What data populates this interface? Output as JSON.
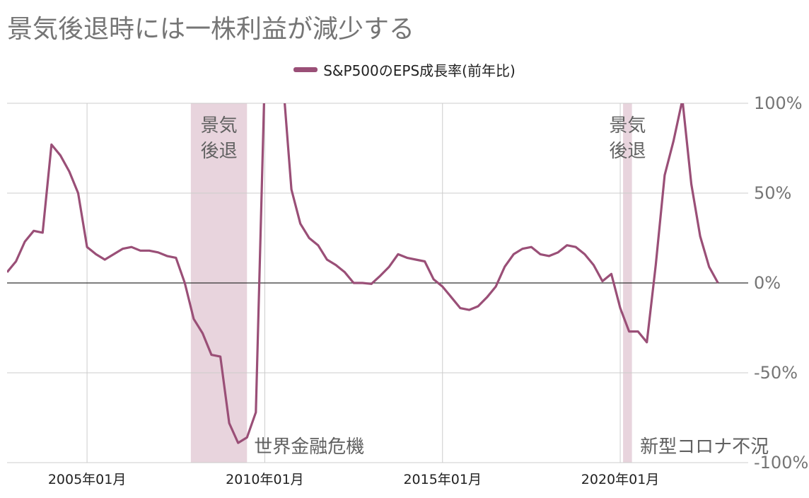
{
  "chart_data": {
    "type": "line",
    "title": "景気後退時には一株利益が減少する",
    "series": [
      {
        "name": "S&P500のEPS成長率(前年比)",
        "color": "#9a4f77",
        "x": [
          2002.75,
          2003.0,
          2003.25,
          2003.5,
          2003.75,
          2004.0,
          2004.25,
          2004.5,
          2004.75,
          2005.0,
          2005.25,
          2005.5,
          2005.75,
          2006.0,
          2006.25,
          2006.5,
          2006.75,
          2007.0,
          2007.25,
          2007.5,
          2007.75,
          2008.0,
          2008.25,
          2008.5,
          2008.75,
          2009.0,
          2009.25,
          2009.5,
          2009.75,
          2010.0,
          2010.25,
          2010.5,
          2010.75,
          2011.0,
          2011.25,
          2011.5,
          2011.75,
          2012.0,
          2012.25,
          2012.5,
          2012.75,
          2013.0,
          2013.25,
          2013.5,
          2013.75,
          2014.0,
          2014.25,
          2014.5,
          2014.75,
          2015.0,
          2015.25,
          2015.5,
          2015.75,
          2016.0,
          2016.25,
          2016.5,
          2016.75,
          2017.0,
          2017.25,
          2017.5,
          2017.75,
          2018.0,
          2018.25,
          2018.5,
          2018.75,
          2019.0,
          2019.25,
          2019.5,
          2019.75,
          2020.0,
          2020.25,
          2020.5,
          2020.75,
          2021.0,
          2021.25,
          2021.5,
          2021.75,
          2022.0,
          2022.25,
          2022.5,
          2022.75
        ],
        "y": [
          6,
          12,
          23,
          29,
          28,
          77,
          71,
          62,
          50,
          20,
          16,
          13,
          16,
          19,
          20,
          18,
          18,
          17,
          15,
          14,
          0,
          -20,
          -28,
          -40,
          -41,
          -78,
          -89,
          -86,
          -72,
          null,
          null,
          null,
          52,
          33,
          25,
          21,
          13,
          10,
          6,
          0,
          0,
          -0.5,
          4,
          9,
          16,
          14,
          13,
          12,
          2,
          -2,
          -8,
          -14,
          -15,
          -13,
          -8,
          -2,
          9,
          16,
          19,
          20,
          16,
          15,
          17,
          21,
          20,
          16,
          10,
          1,
          5,
          -14,
          -27,
          -27,
          -33,
          10,
          60,
          79,
          102,
          55,
          26,
          9,
          0
        ]
      }
    ],
    "xlim": [
      2002.75,
      2023.6
    ],
    "ylim": [
      -100,
      100
    ],
    "y_ticks": [
      "100%",
      "50%",
      "0%",
      "-50%",
      "-100%"
    ],
    "x_ticks": [
      {
        "value": 2005.0,
        "label": "2005年01月"
      },
      {
        "value": 2010.0,
        "label": "2010年01月"
      },
      {
        "value": 2015.0,
        "label": "2015年01月"
      },
      {
        "value": 2020.0,
        "label": "2020年01月"
      }
    ],
    "recessions": [
      {
        "start": 2007.92,
        "end": 2009.5,
        "label_lines": [
          "景気",
          "後退"
        ],
        "caption": "世界金融危機"
      },
      {
        "start": 2020.08,
        "end": 2020.33,
        "label_lines": [
          "景気",
          "後退"
        ],
        "caption": "新型コロナ不況"
      }
    ],
    "recession_color": "#e8d4dd",
    "grid": "vertical",
    "legend_position": "top-center"
  }
}
